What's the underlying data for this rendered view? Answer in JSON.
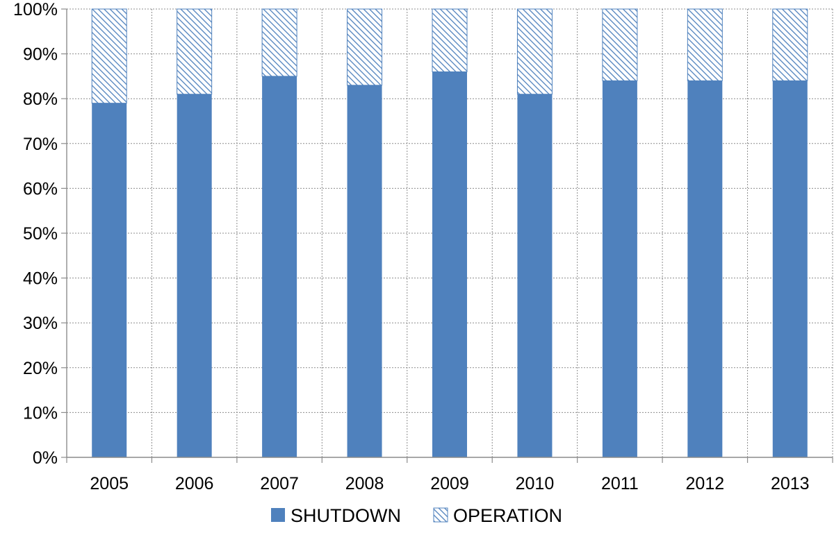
{
  "chart_data": {
    "type": "bar",
    "stacked": true,
    "categories": [
      "2005",
      "2006",
      "2007",
      "2008",
      "2009",
      "2010",
      "2011",
      "2012",
      "2013"
    ],
    "series": [
      {
        "name": "SHUTDOWN",
        "values": [
          79,
          81,
          85,
          83,
          86,
          81,
          84,
          84,
          84
        ],
        "color": "#4f81bd",
        "pattern": "solid"
      },
      {
        "name": "OPERATION",
        "values": [
          21,
          19,
          15,
          17,
          14,
          19,
          16,
          16,
          16
        ],
        "color": "#4f81bd",
        "pattern": "diagonal-hatch"
      }
    ],
    "ylim": [
      0,
      100
    ],
    "yticks": [
      "0%",
      "10%",
      "20%",
      "30%",
      "40%",
      "50%",
      "60%",
      "70%",
      "80%",
      "90%",
      "100%"
    ],
    "grid": true,
    "legend": "bottom"
  }
}
